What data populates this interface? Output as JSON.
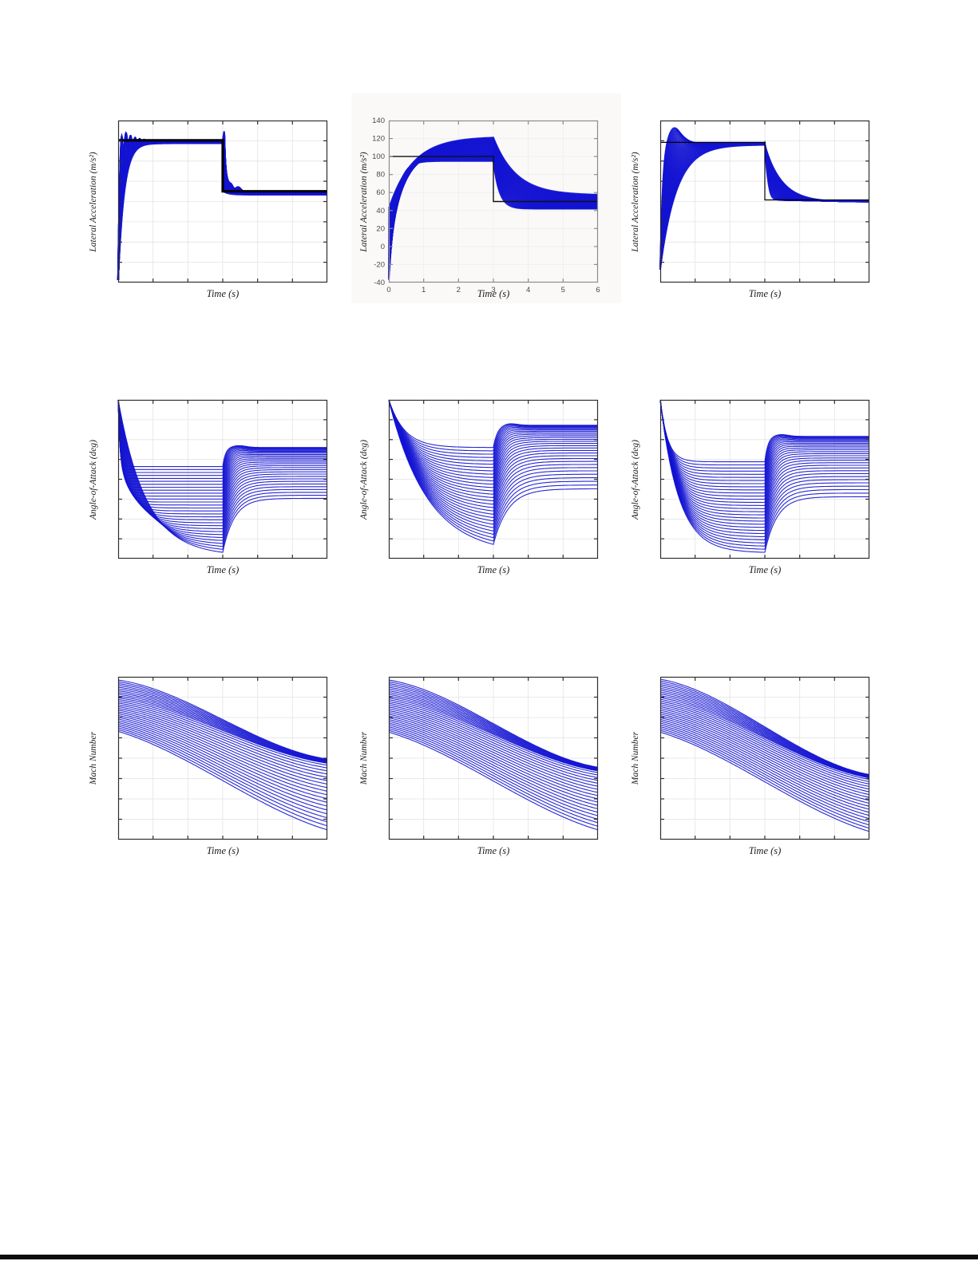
{
  "page": {
    "background": "#ffffff",
    "footer_rule_color": "#0d0d0d",
    "accent_blue": "#1414d2"
  },
  "chart_data": [
    {
      "id": "lateral-acceleration-left",
      "type": "line-family",
      "xlabel": "Time (s)",
      "ylabel": "Lateral Acceleration (m/s²)",
      "x_range": [
        0,
        6
      ],
      "x_divisions": 6,
      "y_divisions": 8,
      "grid": true,
      "tick_labels_visible": false,
      "grid_color": "#e3e3e3",
      "spine_color": "#2f2f2f",
      "line_color": "#1414d2",
      "reference": {
        "color": "#000000",
        "line_width": 3.2,
        "step_time": 3,
        "high_frac": 0.122,
        "low_frac": 0.437
      },
      "family": {
        "kind": "step_mass",
        "n": 40,
        "line_width": 2.2,
        "start_frac": 0.97,
        "settle": [
          0.127,
          0.14
        ],
        "tau": [
          0.035,
          0.175
        ],
        "tau_pow": 1.5,
        "osc": {
          "amp": 0.11,
          "period": 0.13,
          "decay": 0.3
        },
        "spike": [
          0.06,
          0.44
        ],
        "tau2": [
          0.035,
          0.14
        ],
        "final": [
          0.441,
          0.457
        ],
        "bumps": [
          [
            3.22,
            0.09,
            0.05
          ],
          [
            3.44,
            0.11,
            0.03
          ]
        ]
      }
    },
    {
      "id": "lateral-acceleration-middle",
      "type": "line-family",
      "xlabel": "Time (s)",
      "ylabel": "Lateral Acceleration (m/s²)",
      "x_range": [
        0,
        6
      ],
      "y_range": [
        -40,
        140
      ],
      "x_ticks": [
        0,
        1,
        2,
        3,
        4,
        5,
        6
      ],
      "y_ticks": [
        -40,
        -20,
        0,
        20,
        40,
        60,
        80,
        100,
        120,
        140
      ],
      "x_divisions": 6,
      "y_divisions": 9,
      "grid": true,
      "tick_labels_visible": true,
      "grid_color": "#ededed",
      "spine_color": "#8c8c8c",
      "tick_text_color": "#4a4a4a",
      "backdrop": "#faf9f7",
      "line_color": "#1414d2",
      "reference": {
        "color": "#111111",
        "line_width": 1.4,
        "step_time": 3,
        "initial_value": 100,
        "final_value": 50
      },
      "family": {
        "kind": "step_band",
        "n": 34,
        "line_width": 2,
        "start_values": [
          -37,
          42
        ],
        "settle_values": [
          95,
          122
        ],
        "tau": [
          0.2,
          0.68
        ],
        "final_values": [
          42,
          57
        ],
        "tau2": [
          0.17,
          0.65
        ]
      }
    },
    {
      "id": "lateral-acceleration-right",
      "type": "line-family",
      "xlabel": "Time (s)",
      "ylabel": "Lateral Acceleration (m/s²)",
      "x_range": [
        0,
        6
      ],
      "x_divisions": 6,
      "y_divisions": 8,
      "grid": true,
      "tick_labels_visible": false,
      "grid_color": "#e3e3e3",
      "spine_color": "#2f2f2f",
      "line_color": "#1414d2",
      "reference": {
        "color": "#000000",
        "line_width": 1.2,
        "step_time": 3,
        "high_frac": 0.135,
        "low_frac": 0.49
      },
      "family": {
        "kind": "step_smooth",
        "n": 36,
        "line_width": 1.6,
        "start_frac": 0.92,
        "settle": [
          0.138,
          0.15
        ],
        "tau": [
          0.07,
          0.47
        ],
        "tau_pow": 1.2,
        "overshoot": 0.095,
        "final": [
          0.492,
          0.503
        ],
        "tau2": [
          0.07,
          0.49
        ]
      }
    },
    {
      "id": "angle-of-attack-left",
      "type": "line-family",
      "xlabel": "Time (s)",
      "ylabel": "Angle-of-Attack (deg)",
      "x_range": [
        0,
        6
      ],
      "x_divisions": 6,
      "y_divisions": 8,
      "grid": true,
      "tick_labels_visible": false,
      "grid_color": "#e3e3e3",
      "spine_color": "#2f2f2f",
      "line_color": "#1414d2",
      "family": {
        "kind": "aoa",
        "n": 30,
        "line_width": 1.1,
        "y0": 0.0,
        "p1": [
          0.42,
          0.96
        ],
        "tau1": [
          0.05,
          0.8
        ],
        "tau1_pow": 2.2,
        "p2": [
          0.3,
          0.62
        ],
        "tau2": [
          0.08,
          0.33
        ],
        "overshoot": 0.012
      }
    },
    {
      "id": "angle-of-attack-middle",
      "type": "line-family",
      "xlabel": "Time (s)",
      "ylabel": "Angle-of-Attack (deg)",
      "x_range": [
        0,
        6
      ],
      "x_divisions": 6,
      "y_divisions": 8,
      "grid": true,
      "tick_labels_visible": false,
      "grid_color": "#e3e3e3",
      "spine_color": "#2f2f2f",
      "line_color": "#1414d2",
      "family": {
        "kind": "aoa",
        "n": 30,
        "line_width": 1.1,
        "y0": 0.0,
        "p1": [
          0.3,
          0.91
        ],
        "tau1": [
          0.45,
          1.1
        ],
        "tau1_pow": 1,
        "p2": [
          0.16,
          0.56
        ],
        "tau2": [
          0.12,
          0.42
        ],
        "overshoot": 0.012
      }
    },
    {
      "id": "angle-of-attack-right",
      "type": "line-family",
      "xlabel": "Time (s)",
      "ylabel": "Angle-of-Attack (deg)",
      "x_range": [
        0,
        6
      ],
      "x_divisions": 6,
      "y_divisions": 8,
      "grid": true,
      "tick_labels_visible": false,
      "grid_color": "#e3e3e3",
      "spine_color": "#2f2f2f",
      "line_color": "#1414d2",
      "family": {
        "kind": "aoa",
        "n": 30,
        "line_width": 1.1,
        "y0": 0.0,
        "p1": [
          0.39,
          0.96
        ],
        "tau1_slope_coeff": 0.55,
        "p2": [
          0.23,
          0.61
        ],
        "tau2": [
          0.09,
          0.35
        ],
        "overshoot": 0.012
      }
    },
    {
      "id": "mach-number-left",
      "type": "line-family",
      "xlabel": "Time (s)",
      "ylabel": "Mach Number",
      "x_range": [
        0,
        6
      ],
      "x_divisions": 6,
      "y_divisions": 8,
      "grid": true,
      "tick_labels_visible": false,
      "grid_color": "#e3e3e3",
      "spine_color": "#2f2f2f",
      "line_color": "#1414d2",
      "family": {
        "kind": "mach",
        "n": 30,
        "line_width": 1.1,
        "start": [
          0.02,
          0.335
        ],
        "end": [
          0.505,
          0.94
        ],
        "bunch_frac": 0.35,
        "shape": [
          0.62,
          0.37
        ]
      }
    },
    {
      "id": "mach-number-middle",
      "type": "line-family",
      "xlabel": "Time (s)",
      "ylabel": "Mach Number",
      "x_range": [
        0,
        6
      ],
      "x_divisions": 6,
      "y_divisions": 8,
      "grid": true,
      "tick_labels_visible": false,
      "grid_color": "#e3e3e3",
      "spine_color": "#2f2f2f",
      "line_color": "#1414d2",
      "family": {
        "kind": "mach",
        "n": 30,
        "line_width": 1.1,
        "start": [
          0.02,
          0.34
        ],
        "end": [
          0.555,
          0.94
        ],
        "bunch_frac": 0.35,
        "shape": [
          0.62,
          0.37
        ]
      }
    },
    {
      "id": "mach-number-right",
      "type": "line-family",
      "xlabel": "Time (s)",
      "ylabel": "Mach Number",
      "x_range": [
        0,
        6
      ],
      "x_divisions": 6,
      "y_divisions": 8,
      "grid": true,
      "tick_labels_visible": false,
      "grid_color": "#e3e3e3",
      "spine_color": "#2f2f2f",
      "line_color": "#1414d2",
      "family": {
        "kind": "mach",
        "n": 30,
        "line_width": 1.1,
        "start": [
          0.015,
          0.34
        ],
        "end": [
          0.6,
          0.95
        ],
        "bunch_frac": 0.35,
        "shape": [
          0.62,
          0.37
        ]
      }
    }
  ]
}
